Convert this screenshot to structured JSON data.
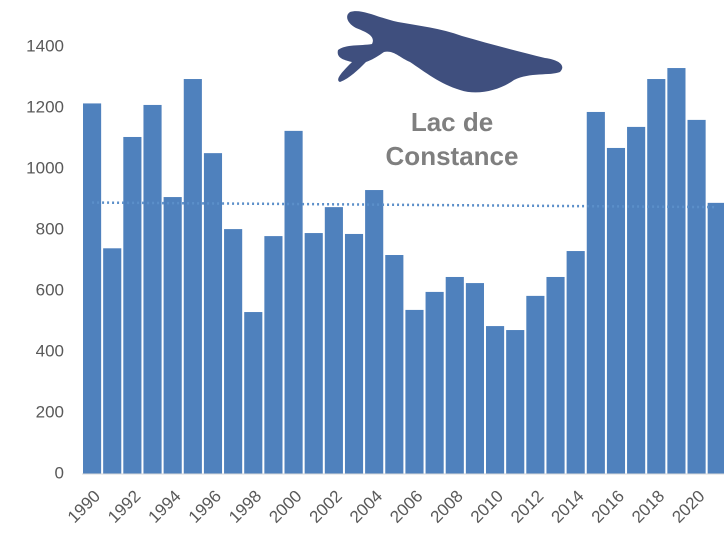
{
  "chart_data": {
    "type": "bar",
    "annotation": [
      "Lac de",
      "Constance"
    ],
    "categories": [
      "1990",
      null,
      "1992",
      null,
      "1994",
      null,
      "1996",
      null,
      "1998",
      null,
      "2000",
      null,
      "2002",
      null,
      "2004",
      null,
      "2006",
      null,
      "2008",
      null,
      "2010",
      null,
      "2012",
      null,
      "2014",
      null,
      "2016",
      null,
      "2018",
      null,
      "2020",
      null
    ],
    "values": [
      1215,
      740,
      1105,
      1210,
      908,
      1295,
      1052,
      803,
      531,
      780,
      1125,
      790,
      875,
      787,
      931,
      718,
      538,
      597,
      646,
      626,
      485,
      472,
      584,
      646,
      731,
      1187,
      1069,
      1138,
      1295,
      1331,
      1161,
      889
    ],
    "color": "#4f81bd",
    "trendline": {
      "values": [
        890,
        875
      ],
      "color": "#5b8fc9"
    },
    "ylim": [
      0,
      1400
    ],
    "yticks": [
      0,
      200,
      400,
      600,
      800,
      1000,
      1200,
      1400
    ],
    "grid": false
  }
}
